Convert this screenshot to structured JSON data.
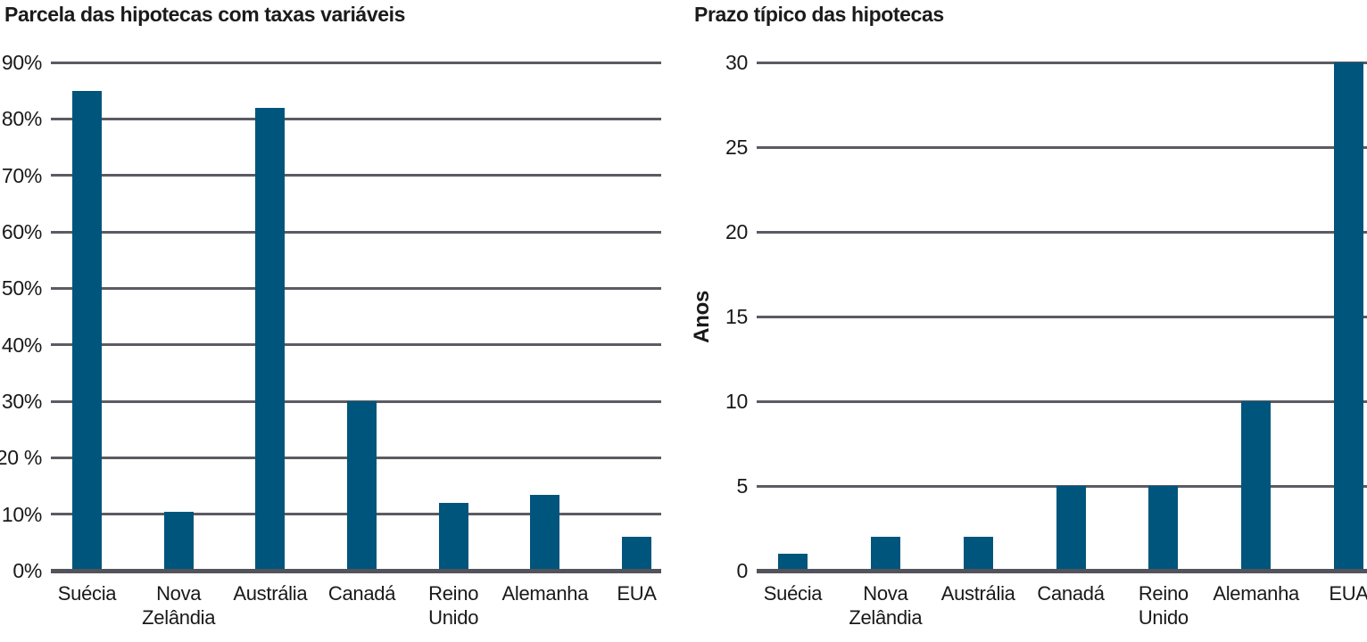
{
  "page": {
    "background": "#ffffff"
  },
  "colors": {
    "bar": "#00557c",
    "gridline": "#5b5b63",
    "axis_line": "#53535b",
    "text": "#1a1a1a"
  },
  "chart_data": [
    {
      "type": "bar",
      "title": "Parcela das hipotecas com taxas variáveis",
      "categories": [
        "Suécia",
        "Nova\nZelândia",
        "Austrália",
        "Canadá",
        "Reino\nUnido",
        "Alemanha",
        "EUA"
      ],
      "values": [
        85,
        10.5,
        82,
        30,
        12,
        13.5,
        6
      ],
      "unit": "%",
      "xlabel": "",
      "ylabel": "",
      "ylim": [
        0,
        90
      ],
      "ytick_step": 10,
      "ytick_labels": [
        "90%",
        "80%",
        "70%",
        "60%",
        "50%",
        "40%",
        "30%",
        "20 %",
        "10%",
        "0%"
      ],
      "grid": true,
      "legend": null,
      "bar_color": "#00557c"
    },
    {
      "type": "bar",
      "title": "Prazo típico das hipotecas",
      "categories": [
        "Suécia",
        "Nova\nZelândia",
        "Austrália",
        "Canadá",
        "Reino\nUnido",
        "Alemanha",
        "EUA"
      ],
      "values": [
        1,
        2,
        2,
        5,
        5,
        10,
        30
      ],
      "unit": "anos",
      "xlabel": "",
      "ylabel": "Anos",
      "ylim": [
        0,
        30
      ],
      "ytick_step": 5,
      "ytick_labels": [
        "30",
        "25",
        "20",
        "15",
        "10",
        "5",
        "0"
      ],
      "grid": true,
      "legend": null,
      "bar_color": "#00557c"
    }
  ]
}
